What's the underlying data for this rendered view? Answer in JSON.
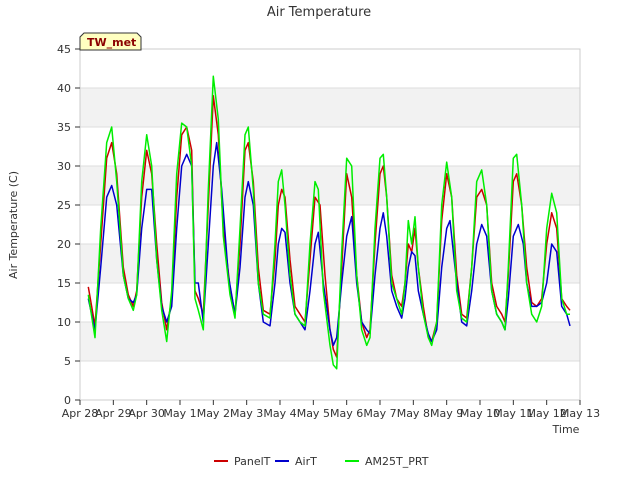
{
  "chart_data": {
    "type": "line",
    "title": "Air Temperature",
    "xlabel": "Time",
    "ylabel": "Air Temperature (C)",
    "tag": "TW_met",
    "ylim": [
      0,
      45
    ],
    "yticks": [
      0,
      5,
      10,
      15,
      20,
      25,
      30,
      35,
      40,
      45
    ],
    "xlim": [
      0,
      15
    ],
    "xticks": [
      {
        "pos": 0,
        "label": "Apr 28"
      },
      {
        "pos": 1,
        "label": "Apr 29"
      },
      {
        "pos": 2,
        "label": "Apr 30"
      },
      {
        "pos": 3,
        "label": "May 1"
      },
      {
        "pos": 4,
        "label": "May 2"
      },
      {
        "pos": 5,
        "label": "May 3"
      },
      {
        "pos": 6,
        "label": "May 4"
      },
      {
        "pos": 7,
        "label": "May 5"
      },
      {
        "pos": 8,
        "label": "May 6"
      },
      {
        "pos": 9,
        "label": "May 7"
      },
      {
        "pos": 10,
        "label": "May 8"
      },
      {
        "pos": 11,
        "label": "May 9"
      },
      {
        "pos": 12,
        "label": "May 10"
      },
      {
        "pos": 13,
        "label": "May 11"
      },
      {
        "pos": 14,
        "label": "May 12"
      },
      {
        "pos": 15,
        "label": "May 13"
      }
    ],
    "grid": true,
    "legend_position": "bottom",
    "x_unit": "days since Apr 28",
    "series": [
      {
        "name": "PanelT",
        "color": "#cc0000",
        "points": [
          [
            0.25,
            14.5
          ],
          [
            0.45,
            9.5
          ],
          [
            0.62,
            20
          ],
          [
            0.8,
            31
          ],
          [
            0.95,
            33
          ],
          [
            1.1,
            29
          ],
          [
            1.3,
            17
          ],
          [
            1.45,
            13.5
          ],
          [
            1.6,
            12
          ],
          [
            1.7,
            14
          ],
          [
            1.85,
            26
          ],
          [
            2.0,
            32
          ],
          [
            2.15,
            29
          ],
          [
            2.3,
            20
          ],
          [
            2.45,
            12.5
          ],
          [
            2.6,
            9
          ],
          [
            2.75,
            13
          ],
          [
            2.9,
            26
          ],
          [
            3.05,
            34
          ],
          [
            3.2,
            35
          ],
          [
            3.35,
            32
          ],
          [
            3.45,
            14
          ],
          [
            3.55,
            13
          ],
          [
            3.7,
            11
          ],
          [
            3.85,
            25
          ],
          [
            4.0,
            39
          ],
          [
            4.15,
            34
          ],
          [
            4.3,
            22
          ],
          [
            4.5,
            14.5
          ],
          [
            4.65,
            11
          ],
          [
            4.8,
            20
          ],
          [
            4.95,
            32
          ],
          [
            5.05,
            33
          ],
          [
            5.2,
            28
          ],
          [
            5.35,
            17
          ],
          [
            5.5,
            11.5
          ],
          [
            5.7,
            11
          ],
          [
            5.85,
            18
          ],
          [
            5.95,
            25
          ],
          [
            6.05,
            27
          ],
          [
            6.15,
            26
          ],
          [
            6.3,
            18
          ],
          [
            6.45,
            12
          ],
          [
            6.6,
            11
          ],
          [
            6.75,
            10
          ],
          [
            6.9,
            18
          ],
          [
            7.05,
            26
          ],
          [
            7.2,
            25
          ],
          [
            7.35,
            16
          ],
          [
            7.5,
            9
          ],
          [
            7.6,
            6.5
          ],
          [
            7.7,
            5.5
          ],
          [
            7.85,
            17
          ],
          [
            8.0,
            29
          ],
          [
            8.15,
            26
          ],
          [
            8.3,
            16
          ],
          [
            8.45,
            10
          ],
          [
            8.6,
            8
          ],
          [
            8.7,
            9
          ],
          [
            8.85,
            20
          ],
          [
            9.0,
            29
          ],
          [
            9.1,
            30
          ],
          [
            9.2,
            26
          ],
          [
            9.35,
            16
          ],
          [
            9.5,
            13
          ],
          [
            9.65,
            12
          ],
          [
            9.75,
            15
          ],
          [
            9.85,
            20
          ],
          [
            9.95,
            19
          ],
          [
            10.05,
            22
          ],
          [
            10.15,
            17
          ],
          [
            10.3,
            12
          ],
          [
            10.45,
            8
          ],
          [
            10.55,
            7.5
          ],
          [
            10.7,
            10
          ],
          [
            10.85,
            23
          ],
          [
            11.0,
            29
          ],
          [
            11.15,
            26
          ],
          [
            11.3,
            16
          ],
          [
            11.45,
            11
          ],
          [
            11.6,
            10.5
          ],
          [
            11.75,
            17
          ],
          [
            11.9,
            26
          ],
          [
            12.05,
            27
          ],
          [
            12.2,
            25
          ],
          [
            12.35,
            15
          ],
          [
            12.5,
            12
          ],
          [
            12.65,
            11
          ],
          [
            12.75,
            10
          ],
          [
            12.85,
            16
          ],
          [
            13.0,
            28
          ],
          [
            13.1,
            29
          ],
          [
            13.25,
            25
          ],
          [
            13.4,
            17
          ],
          [
            13.55,
            12.5
          ],
          [
            13.7,
            12
          ],
          [
            13.85,
            13
          ],
          [
            14.0,
            20
          ],
          [
            14.15,
            24
          ],
          [
            14.3,
            22
          ],
          [
            14.45,
            13
          ],
          [
            14.6,
            12
          ],
          [
            14.7,
            11.5
          ]
        ]
      },
      {
        "name": "AirT",
        "color": "#0000cc",
        "points": [
          [
            0.25,
            13
          ],
          [
            0.45,
            9
          ],
          [
            0.62,
            17
          ],
          [
            0.8,
            26
          ],
          [
            0.95,
            27.5
          ],
          [
            1.1,
            25
          ],
          [
            1.3,
            16
          ],
          [
            1.45,
            13
          ],
          [
            1.6,
            12.5
          ],
          [
            1.7,
            13.5
          ],
          [
            1.85,
            22
          ],
          [
            2.0,
            27
          ],
          [
            2.15,
            27
          ],
          [
            2.3,
            18
          ],
          [
            2.45,
            12
          ],
          [
            2.6,
            10
          ],
          [
            2.75,
            12
          ],
          [
            2.9,
            22
          ],
          [
            3.05,
            30
          ],
          [
            3.2,
            31.5
          ],
          [
            3.35,
            30
          ],
          [
            3.45,
            15
          ],
          [
            3.55,
            15
          ],
          [
            3.7,
            10
          ],
          [
            3.85,
            20
          ],
          [
            4.0,
            30
          ],
          [
            4.1,
            33
          ],
          [
            4.25,
            27
          ],
          [
            4.45,
            16
          ],
          [
            4.65,
            11
          ],
          [
            4.8,
            17
          ],
          [
            4.95,
            26
          ],
          [
            5.05,
            28
          ],
          [
            5.2,
            25
          ],
          [
            5.35,
            15
          ],
          [
            5.5,
            10
          ],
          [
            5.7,
            9.5
          ],
          [
            5.85,
            15
          ],
          [
            5.95,
            20
          ],
          [
            6.05,
            22
          ],
          [
            6.15,
            21.5
          ],
          [
            6.3,
            15
          ],
          [
            6.45,
            11
          ],
          [
            6.6,
            10
          ],
          [
            6.75,
            9
          ],
          [
            6.9,
            14
          ],
          [
            7.05,
            20
          ],
          [
            7.15,
            21.5
          ],
          [
            7.3,
            15
          ],
          [
            7.5,
            9
          ],
          [
            7.6,
            7
          ],
          [
            7.7,
            8
          ],
          [
            7.85,
            15
          ],
          [
            8.0,
            21
          ],
          [
            8.15,
            23.5
          ],
          [
            8.3,
            15
          ],
          [
            8.45,
            10
          ],
          [
            8.6,
            9
          ],
          [
            8.7,
            8.5
          ],
          [
            8.85,
            16
          ],
          [
            9.0,
            22
          ],
          [
            9.1,
            24
          ],
          [
            9.2,
            21
          ],
          [
            9.35,
            14
          ],
          [
            9.5,
            12
          ],
          [
            9.65,
            10.5
          ],
          [
            9.75,
            13
          ],
          [
            9.85,
            17
          ],
          [
            9.95,
            19
          ],
          [
            10.05,
            18.5
          ],
          [
            10.15,
            14
          ],
          [
            10.3,
            11
          ],
          [
            10.45,
            8.5
          ],
          [
            10.55,
            7.5
          ],
          [
            10.7,
            9
          ],
          [
            10.85,
            17
          ],
          [
            11.0,
            22
          ],
          [
            11.1,
            23
          ],
          [
            11.25,
            17
          ],
          [
            11.45,
            10
          ],
          [
            11.6,
            9.5
          ],
          [
            11.75,
            14
          ],
          [
            11.9,
            20
          ],
          [
            12.05,
            22.5
          ],
          [
            12.2,
            21
          ],
          [
            12.35,
            14
          ],
          [
            12.5,
            11
          ],
          [
            12.65,
            10
          ],
          [
            12.75,
            9
          ],
          [
            12.85,
            13
          ],
          [
            13.0,
            21
          ],
          [
            13.15,
            22.5
          ],
          [
            13.3,
            20
          ],
          [
            13.4,
            15
          ],
          [
            13.55,
            12
          ],
          [
            13.7,
            12
          ],
          [
            13.85,
            12.5
          ],
          [
            14.0,
            15
          ],
          [
            14.15,
            20
          ],
          [
            14.3,
            19
          ],
          [
            14.45,
            12
          ],
          [
            14.6,
            11
          ],
          [
            14.7,
            9.5
          ]
        ]
      },
      {
        "name": "AM25T_PRT",
        "color": "#00ee00",
        "points": [
          [
            0.25,
            13.5
          ],
          [
            0.45,
            8
          ],
          [
            0.62,
            22
          ],
          [
            0.8,
            33
          ],
          [
            0.95,
            35
          ],
          [
            1.1,
            28
          ],
          [
            1.3,
            16
          ],
          [
            1.45,
            13
          ],
          [
            1.6,
            11.5
          ],
          [
            1.7,
            13.5
          ],
          [
            1.85,
            28
          ],
          [
            2.0,
            34
          ],
          [
            2.15,
            30
          ],
          [
            2.3,
            18
          ],
          [
            2.45,
            11.5
          ],
          [
            2.6,
            7.5
          ],
          [
            2.75,
            14
          ],
          [
            2.9,
            29
          ],
          [
            3.05,
            35.5
          ],
          [
            3.2,
            35
          ],
          [
            3.35,
            30
          ],
          [
            3.45,
            13
          ],
          [
            3.55,
            11.5
          ],
          [
            3.7,
            9
          ],
          [
            3.85,
            27
          ],
          [
            4.0,
            41.5
          ],
          [
            4.15,
            36
          ],
          [
            4.3,
            21
          ],
          [
            4.5,
            13.5
          ],
          [
            4.65,
            10.5
          ],
          [
            4.8,
            22
          ],
          [
            4.95,
            34
          ],
          [
            5.05,
            35
          ],
          [
            5.2,
            27
          ],
          [
            5.35,
            15
          ],
          [
            5.5,
            11
          ],
          [
            5.7,
            10.5
          ],
          [
            5.85,
            20
          ],
          [
            5.95,
            28
          ],
          [
            6.05,
            29.5
          ],
          [
            6.15,
            25
          ],
          [
            6.3,
            16
          ],
          [
            6.45,
            11
          ],
          [
            6.6,
            10
          ],
          [
            6.75,
            9.5
          ],
          [
            6.9,
            20
          ],
          [
            7.05,
            28
          ],
          [
            7.15,
            27
          ],
          [
            7.3,
            14
          ],
          [
            7.5,
            7
          ],
          [
            7.6,
            4.5
          ],
          [
            7.7,
            4
          ],
          [
            7.85,
            19
          ],
          [
            8.0,
            31
          ],
          [
            8.15,
            30
          ],
          [
            8.3,
            16
          ],
          [
            8.45,
            9
          ],
          [
            8.6,
            7
          ],
          [
            8.7,
            8
          ],
          [
            8.85,
            22
          ],
          [
            9.0,
            31
          ],
          [
            9.1,
            31.5
          ],
          [
            9.2,
            26
          ],
          [
            9.35,
            15
          ],
          [
            9.5,
            13
          ],
          [
            9.65,
            11
          ],
          [
            9.75,
            15
          ],
          [
            9.85,
            23
          ],
          [
            9.95,
            20
          ],
          [
            10.05,
            23.5
          ],
          [
            10.15,
            17
          ],
          [
            10.3,
            11
          ],
          [
            10.45,
            8
          ],
          [
            10.55,
            7
          ],
          [
            10.7,
            10
          ],
          [
            10.85,
            25
          ],
          [
            11.0,
            30.5
          ],
          [
            11.15,
            26
          ],
          [
            11.3,
            14
          ],
          [
            11.45,
            10.5
          ],
          [
            11.6,
            10
          ],
          [
            11.75,
            17
          ],
          [
            11.9,
            28
          ],
          [
            12.05,
            29.5
          ],
          [
            12.2,
            25
          ],
          [
            12.35,
            14
          ],
          [
            12.5,
            11
          ],
          [
            12.65,
            10
          ],
          [
            12.75,
            9
          ],
          [
            12.85,
            17
          ],
          [
            13.0,
            31
          ],
          [
            13.1,
            31.5
          ],
          [
            13.25,
            25
          ],
          [
            13.4,
            15
          ],
          [
            13.55,
            11
          ],
          [
            13.7,
            10
          ],
          [
            13.85,
            12
          ],
          [
            14.0,
            22
          ],
          [
            14.15,
            26.5
          ],
          [
            14.3,
            24
          ],
          [
            14.45,
            13
          ],
          [
            14.6,
            11
          ],
          [
            14.7,
            11
          ]
        ]
      }
    ]
  }
}
